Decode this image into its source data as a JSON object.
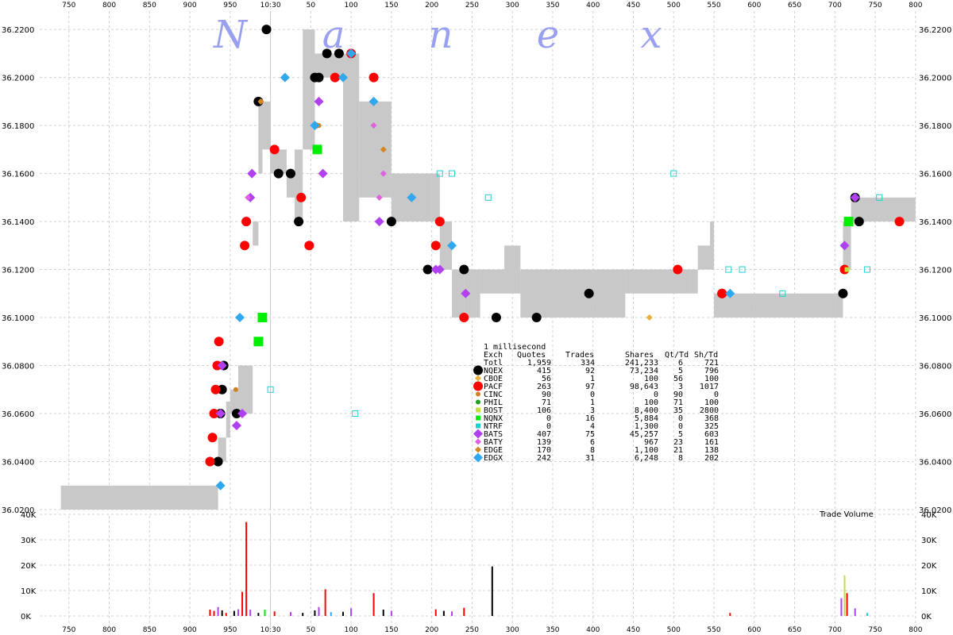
{
  "watermark": [
    "N",
    "a",
    "n",
    "e",
    "x"
  ],
  "chart_data": [
    {
      "type": "scatter",
      "title": "",
      "x_tick_labels": [
        "750",
        "800",
        "850",
        "900",
        "950",
        "10:30",
        "50",
        "100",
        "150",
        "200",
        "250",
        "300",
        "350",
        "400",
        "450",
        "500",
        "550",
        "600",
        "650",
        "700",
        "750",
        "800"
      ],
      "y_tick_labels": [
        "36.0200",
        "36.0400",
        "36.0600",
        "36.0800",
        "36.1000",
        "36.1200",
        "36.1400",
        "36.1600",
        "36.1800",
        "36.2000",
        "36.2200"
      ],
      "ylim": [
        36.02,
        36.225
      ],
      "grid": true,
      "nbbo_band": [
        {
          "x": 740,
          "lo": 36.02,
          "hi": 36.03
        },
        {
          "x": 930,
          "lo": 36.02,
          "hi": 36.03
        },
        {
          "x": 935,
          "lo": 36.04,
          "hi": 36.05
        },
        {
          "x": 945,
          "lo": 36.05,
          "hi": 36.065
        },
        {
          "x": 950,
          "lo": 36.06,
          "hi": 36.07
        },
        {
          "x": 960,
          "lo": 36.06,
          "hi": 36.08
        },
        {
          "x": 978,
          "lo": 36.13,
          "hi": 36.14
        },
        {
          "x": 985,
          "lo": 36.16,
          "hi": 36.19
        },
        {
          "x": 990,
          "lo": 36.17,
          "hi": 36.19
        },
        {
          "x": 1000,
          "lo": 36.16,
          "hi": 36.17
        },
        {
          "x": 1020,
          "lo": 36.15,
          "hi": 36.16
        },
        {
          "x": 1030,
          "lo": 36.14,
          "hi": 36.17
        },
        {
          "x": 1040,
          "lo": 36.17,
          "hi": 36.22
        },
        {
          "x": 1055,
          "lo": 36.2,
          "hi": 36.21
        },
        {
          "x": 1090,
          "lo": 36.14,
          "hi": 36.21
        },
        {
          "x": 1110,
          "lo": 36.15,
          "hi": 36.19
        },
        {
          "x": 1150,
          "lo": 36.14,
          "hi": 36.16
        },
        {
          "x": 1200,
          "lo": 36.14,
          "hi": 36.16
        },
        {
          "x": 1210,
          "lo": 36.12,
          "hi": 36.14
        },
        {
          "x": 1225,
          "lo": 36.1,
          "hi": 36.12
        },
        {
          "x": 1240,
          "lo": 36.1,
          "hi": 36.12
        },
        {
          "x": 1260,
          "lo": 36.11,
          "hi": 36.12
        },
        {
          "x": 1290,
          "lo": 36.11,
          "hi": 36.13
        },
        {
          "x": 1310,
          "lo": 36.1,
          "hi": 36.12
        },
        {
          "x": 1400,
          "lo": 36.1,
          "hi": 36.12
        },
        {
          "x": 1440,
          "lo": 36.11,
          "hi": 36.12
        },
        {
          "x": 1520,
          "lo": 36.11,
          "hi": 36.12
        },
        {
          "x": 1530,
          "lo": 36.12,
          "hi": 36.13
        },
        {
          "x": 1545,
          "lo": 36.12,
          "hi": 36.14
        },
        {
          "x": 1550,
          "lo": 36.1,
          "hi": 36.11
        },
        {
          "x": 1600,
          "lo": 36.1,
          "hi": 36.11
        },
        {
          "x": 1700,
          "lo": 36.1,
          "hi": 36.11
        },
        {
          "x": 1710,
          "lo": 36.12,
          "hi": 36.14
        },
        {
          "x": 1720,
          "lo": 36.14,
          "hi": 36.15
        },
        {
          "x": 1800,
          "lo": 36.14,
          "hi": 36.15
        }
      ],
      "series": [
        {
          "name": "NQEX",
          "color": "#000000",
          "marker": "circle",
          "points": [
            [
              935,
              36.04
            ],
            [
              938,
              36.06
            ],
            [
              940,
              36.07
            ],
            [
              942,
              36.08
            ],
            [
              958,
              36.06
            ],
            [
              985,
              36.19
            ],
            [
              995,
              36.22
            ],
            [
              1010,
              36.16
            ],
            [
              1025,
              36.16
            ],
            [
              1035,
              36.14
            ],
            [
              1055,
              36.2
            ],
            [
              1060,
              36.2
            ],
            [
              1070,
              36.21
            ],
            [
              1085,
              36.21
            ],
            [
              1150,
              36.14
            ],
            [
              1195,
              36.12
            ],
            [
              1240,
              36.12
            ],
            [
              1280,
              36.1
            ],
            [
              1330,
              36.1
            ],
            [
              1395,
              36.11
            ],
            [
              1560,
              36.11
            ],
            [
              1710,
              36.11
            ],
            [
              1725,
              36.15
            ],
            [
              1730,
              36.14
            ]
          ]
        },
        {
          "name": "CBOE",
          "color": "#e8b040",
          "marker": "diamond-small",
          "points": [
            [
              1470,
              36.1
            ]
          ]
        },
        {
          "name": "PACF",
          "color": "#ff0000",
          "marker": "circle",
          "points": [
            [
              925,
              36.04
            ],
            [
              928,
              36.05
            ],
            [
              930,
              36.06
            ],
            [
              932,
              36.07
            ],
            [
              934,
              36.08
            ],
            [
              936,
              36.09
            ],
            [
              968,
              36.13
            ],
            [
              970,
              36.14
            ],
            [
              1005,
              36.17
            ],
            [
              1038,
              36.15
            ],
            [
              1048,
              36.13
            ],
            [
              1080,
              36.2
            ],
            [
              1100,
              36.21
            ],
            [
              1128,
              36.2
            ],
            [
              1205,
              36.13
            ],
            [
              1210,
              36.14
            ],
            [
              1240,
              36.1
            ],
            [
              1505,
              36.12
            ],
            [
              1560,
              36.11
            ],
            [
              1712,
              36.12
            ],
            [
              1780,
              36.14
            ]
          ]
        },
        {
          "name": "CINC",
          "color": "#d08020",
          "marker": "circle-small",
          "points": [
            [
              957,
              36.07
            ],
            [
              988,
              36.19
            ],
            [
              1060,
              36.18
            ]
          ]
        },
        {
          "name": "PHIL",
          "color": "#20a020",
          "marker": "circle-small",
          "points": [
            [
              1710,
              36.13
            ]
          ]
        },
        {
          "name": "BOST",
          "color": "#c0e040",
          "marker": "square-small",
          "points": [
            [
              1715,
              36.12
            ]
          ]
        },
        {
          "name": "NQNX",
          "color": "#00ee00",
          "marker": "square",
          "points": [
            [
              990,
              36.1
            ],
            [
              985,
              36.09
            ],
            [
              1058,
              36.17
            ],
            [
              1717,
              36.14
            ]
          ]
        },
        {
          "name": "NTRF",
          "color": "#20d0d0",
          "marker": "square-open",
          "points": [
            [
              1000,
              36.07
            ],
            [
              1105,
              36.06
            ],
            [
              1210,
              36.16
            ],
            [
              1225,
              36.16
            ],
            [
              1270,
              36.15
            ],
            [
              1500,
              36.16
            ],
            [
              1568,
              36.12
            ],
            [
              1585,
              36.12
            ],
            [
              1635,
              36.11
            ],
            [
              1740,
              36.12
            ],
            [
              1755,
              36.15
            ]
          ]
        },
        {
          "name": "BATS",
          "color": "#b040f0",
          "marker": "diamond",
          "points": [
            [
              938,
              36.06
            ],
            [
              940,
              36.08
            ],
            [
              958,
              36.055
            ],
            [
              965,
              36.06
            ],
            [
              975,
              36.15
            ],
            [
              977,
              36.16
            ],
            [
              1060,
              36.19
            ],
            [
              1065,
              36.16
            ],
            [
              1135,
              36.14
            ],
            [
              1205,
              36.12
            ],
            [
              1210,
              36.12
            ],
            [
              1242,
              36.11
            ],
            [
              1712,
              36.13
            ],
            [
              1725,
              36.15
            ]
          ]
        },
        {
          "name": "BATY",
          "color": "#e060e0",
          "marker": "diamond-small",
          "points": [
            [
              972,
              36.15
            ],
            [
              1128,
              36.18
            ],
            [
              1135,
              36.15
            ],
            [
              1140,
              36.16
            ]
          ]
        },
        {
          "name": "EDGE",
          "color": "#d08820",
          "marker": "diamond-small",
          "points": [
            [
              988,
              36.19
            ],
            [
              1058,
              36.18
            ],
            [
              1140,
              36.17
            ]
          ]
        },
        {
          "name": "EDGX",
          "color": "#30a8f0",
          "marker": "diamond",
          "points": [
            [
              938,
              36.03
            ],
            [
              962,
              36.1
            ],
            [
              1018,
              36.2
            ],
            [
              1055,
              36.18
            ],
            [
              1090,
              36.2
            ],
            [
              1100,
              36.21
            ],
            [
              1128,
              36.19
            ],
            [
              1175,
              36.15
            ],
            [
              1225,
              36.13
            ],
            [
              1570,
              36.11
            ]
          ]
        }
      ]
    },
    {
      "type": "bar",
      "title": "Trade Volume",
      "x_tick_labels": [
        "750",
        "800",
        "850",
        "900",
        "950",
        "10:30",
        "50",
        "100",
        "150",
        "200",
        "250",
        "300",
        "350",
        "400",
        "450",
        "500",
        "550",
        "600",
        "650",
        "700",
        "750",
        "800"
      ],
      "y_tick_labels": [
        "0K",
        "10K",
        "20K",
        "30K",
        "40K"
      ],
      "ylim": [
        0,
        40000
      ],
      "bars": [
        {
          "x": 925,
          "value": 2500,
          "color": "#ff0000"
        },
        {
          "x": 930,
          "value": 2000,
          "color": "#ff0000"
        },
        {
          "x": 935,
          "value": 3500,
          "color": "#b040f0"
        },
        {
          "x": 940,
          "value": 2200,
          "color": "#000000"
        },
        {
          "x": 945,
          "value": 1200,
          "color": "#ff0000"
        },
        {
          "x": 955,
          "value": 2000,
          "color": "#000000"
        },
        {
          "x": 960,
          "value": 2600,
          "color": "#b040f0"
        },
        {
          "x": 965,
          "value": 9500,
          "color": "#ff0000"
        },
        {
          "x": 970,
          "value": 37000,
          "color": "#ff0000"
        },
        {
          "x": 975,
          "value": 2500,
          "color": "#b040f0"
        },
        {
          "x": 985,
          "value": 1200,
          "color": "#000000"
        },
        {
          "x": 993,
          "value": 2500,
          "color": "#00ee00"
        },
        {
          "x": 1005,
          "value": 1800,
          "color": "#ff0000"
        },
        {
          "x": 1025,
          "value": 1500,
          "color": "#b040f0"
        },
        {
          "x": 1040,
          "value": 1200,
          "color": "#000000"
        },
        {
          "x": 1055,
          "value": 2200,
          "color": "#000000"
        },
        {
          "x": 1060,
          "value": 3500,
          "color": "#b040f0"
        },
        {
          "x": 1068,
          "value": 10500,
          "color": "#ff0000"
        },
        {
          "x": 1075,
          "value": 1500,
          "color": "#30a8f0"
        },
        {
          "x": 1090,
          "value": 1600,
          "color": "#000000"
        },
        {
          "x": 1100,
          "value": 3000,
          "color": "#b040f0"
        },
        {
          "x": 1128,
          "value": 9000,
          "color": "#ff0000"
        },
        {
          "x": 1140,
          "value": 2500,
          "color": "#000000"
        },
        {
          "x": 1150,
          "value": 2000,
          "color": "#b040f0"
        },
        {
          "x": 1205,
          "value": 2600,
          "color": "#ff0000"
        },
        {
          "x": 1215,
          "value": 2000,
          "color": "#000000"
        },
        {
          "x": 1225,
          "value": 1800,
          "color": "#b040f0"
        },
        {
          "x": 1240,
          "value": 3200,
          "color": "#ff0000"
        },
        {
          "x": 1275,
          "value": 19500,
          "color": "#000000"
        },
        {
          "x": 1570,
          "value": 1200,
          "color": "#ff0000"
        },
        {
          "x": 1708,
          "value": 7000,
          "color": "#b040f0"
        },
        {
          "x": 1712,
          "value": 16000,
          "color": "#c0e040"
        },
        {
          "x": 1715,
          "value": 9000,
          "color": "#ff0000"
        },
        {
          "x": 1725,
          "value": 3000,
          "color": "#b040f0"
        },
        {
          "x": 1740,
          "value": 1200,
          "color": "#20d0d0"
        }
      ]
    }
  ],
  "legend": {
    "title": "1 millisecond",
    "headers": [
      "Exch",
      "Quotes",
      "Trades",
      "Shares",
      "Qt/Td",
      "Sh/Td"
    ],
    "rows": [
      {
        "exch": "Totl",
        "quotes": "1,959",
        "trades": "334",
        "shares": "241,233",
        "qt_td": "6",
        "sh_td": "721",
        "color": "",
        "marker": "none"
      },
      {
        "exch": "NQEX",
        "quotes": "415",
        "trades": "92",
        "shares": "73,234",
        "qt_td": "5",
        "sh_td": "796",
        "color": "#000000",
        "marker": "circle"
      },
      {
        "exch": "CBOE",
        "quotes": "56",
        "trades": "1",
        "shares": "100",
        "qt_td": "56",
        "sh_td": "100",
        "color": "#e8b040",
        "marker": "diamond-small"
      },
      {
        "exch": "PACF",
        "quotes": "263",
        "trades": "97",
        "shares": "98,643",
        "qt_td": "3",
        "sh_td": "1017",
        "color": "#ff0000",
        "marker": "circle"
      },
      {
        "exch": "CINC",
        "quotes": "90",
        "trades": "0",
        "shares": "0",
        "qt_td": "90",
        "sh_td": "0",
        "color": "#d08020",
        "marker": "circle-small"
      },
      {
        "exch": "PHIL",
        "quotes": "71",
        "trades": "1",
        "shares": "100",
        "qt_td": "71",
        "sh_td": "100",
        "color": "#20a020",
        "marker": "circle-small"
      },
      {
        "exch": "BOST",
        "quotes": "106",
        "trades": "3",
        "shares": "8,400",
        "qt_td": "35",
        "sh_td": "2800",
        "color": "#c0e040",
        "marker": "square-small"
      },
      {
        "exch": "NQNX",
        "quotes": "0",
        "trades": "16",
        "shares": "5,884",
        "qt_td": "0",
        "sh_td": "368",
        "color": "#00ee00",
        "marker": "square-small"
      },
      {
        "exch": "NTRF",
        "quotes": "0",
        "trades": "4",
        "shares": "1,300",
        "qt_td": "0",
        "sh_td": "325",
        "color": "#20d0d0",
        "marker": "square-small"
      },
      {
        "exch": "BATS",
        "quotes": "407",
        "trades": "75",
        "shares": "45,257",
        "qt_td": "5",
        "sh_td": "603",
        "color": "#b040f0",
        "marker": "diamond"
      },
      {
        "exch": "BATY",
        "quotes": "139",
        "trades": "6",
        "shares": "967",
        "qt_td": "23",
        "sh_td": "161",
        "color": "#e060e0",
        "marker": "diamond-small"
      },
      {
        "exch": "EDGE",
        "quotes": "170",
        "trades": "8",
        "shares": "1,100",
        "qt_td": "21",
        "sh_td": "138",
        "color": "#d08820",
        "marker": "diamond-small"
      },
      {
        "exch": "EDGX",
        "quotes": "242",
        "trades": "31",
        "shares": "6,248",
        "qt_td": "8",
        "sh_td": "202",
        "color": "#30a8f0",
        "marker": "diamond"
      }
    ]
  }
}
